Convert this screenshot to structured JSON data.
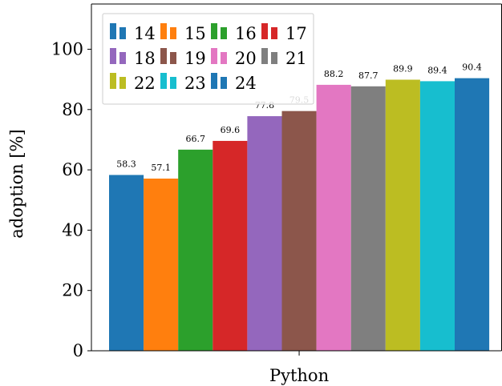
{
  "chart_data": {
    "type": "bar",
    "title": "",
    "xlabel": "Python",
    "ylabel": "adoption [%]",
    "categories": [
      "Python"
    ],
    "ylim": [
      0,
      115
    ],
    "yticks": [
      0,
      20,
      40,
      60,
      80,
      100
    ],
    "grid": false,
    "legend": {
      "position": "top-left",
      "ncol": 4
    },
    "series": [
      {
        "name": "14",
        "values": [
          58.3
        ],
        "label": "58.3",
        "color": "#1f77b4"
      },
      {
        "name": "15",
        "values": [
          57.1
        ],
        "label": "57.1",
        "color": "#ff7f0e"
      },
      {
        "name": "16",
        "values": [
          66.7
        ],
        "label": "66.7",
        "color": "#2ca02c"
      },
      {
        "name": "17",
        "values": [
          69.6
        ],
        "label": "69.6",
        "color": "#d62728"
      },
      {
        "name": "18",
        "values": [
          77.8
        ],
        "label": "77.8",
        "color": "#9467bd"
      },
      {
        "name": "19",
        "values": [
          79.5
        ],
        "label": "79.5",
        "color": "#8c564b"
      },
      {
        "name": "20",
        "values": [
          88.2
        ],
        "label": "88.2",
        "color": "#e377c2"
      },
      {
        "name": "21",
        "values": [
          87.7
        ],
        "label": "87.7",
        "color": "#7f7f7f"
      },
      {
        "name": "22",
        "values": [
          89.9
        ],
        "label": "89.9",
        "color": "#bcbd22"
      },
      {
        "name": "23",
        "values": [
          89.4
        ],
        "label": "89.4",
        "color": "#17becf"
      },
      {
        "name": "24",
        "values": [
          90.4
        ],
        "label": "90.4",
        "color": "#1f77b4"
      }
    ]
  }
}
